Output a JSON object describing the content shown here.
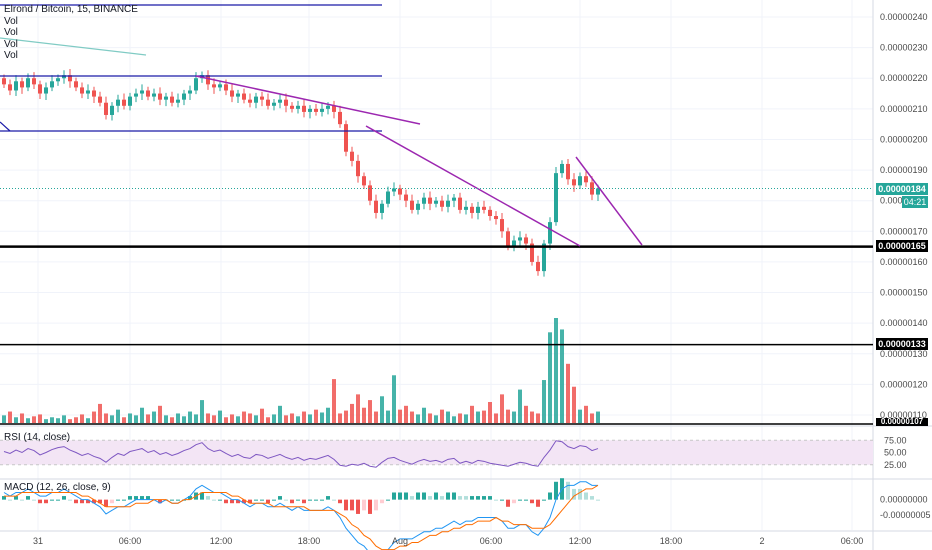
{
  "colors": {
    "up": "#26a69a",
    "down": "#ef5350",
    "trendline": "#9c27b0",
    "channel": "#1a1aa8",
    "level": "#000000",
    "rsi_line": "#7e57c2",
    "rsi_band": "#f3e5f5",
    "macd_line": "#2196f3",
    "signal_line": "#ff6d00",
    "grid": "#f0f3fa",
    "axis_text": "#4a4a4a",
    "last_price": "#26a69a"
  },
  "legend": {
    "symbol": "Elrond / Bitcoin, 15, BINANCE",
    "vol_lines": [
      "Vol",
      "Vol",
      "Vol",
      "Vol"
    ]
  },
  "panes": {
    "rsi_title": "RSI (14, close)",
    "macd_title": "MACD (12, 26, close, 9)"
  },
  "tags": {
    "last_price": "0.00000184",
    "countdown": "04:21",
    "level_165": "0.00000165",
    "level_133": "0.00000133",
    "partial_107": "0.00000107"
  },
  "chart_data": {
    "type": "candlestick",
    "title": "Elrond / Bitcoin, 15, BINANCE",
    "price_axis": {
      "ticks": [
        "0.00000240",
        "0.00000230",
        "0.00000220",
        "0.00000210",
        "0.00000200",
        "0.00000190",
        "0.00000180",
        "0.00000170",
        "0.00000160",
        "0.00000150",
        "0.00000140",
        "0.00000130",
        "0.00000120",
        "0.00000110"
      ],
      "range": [
        1.05e-06,
        2.44e-06
      ]
    },
    "time_axis": {
      "ticks": [
        "31",
        "06:00",
        "12:00",
        "18:00",
        "Aug",
        "06:00",
        "12:00",
        "18:00",
        "2",
        "06:00"
      ]
    },
    "horizontal_levels": [
      1.65e-06,
      1.33e-06,
      2.03e-06,
      2.21e-06,
      2.45e-06
    ],
    "last_price": 1.84e-06,
    "candles": {
      "closes": [
        2.18e-06,
        2.16e-06,
        2.19e-06,
        2.17e-06,
        2.2e-06,
        2.18e-06,
        2.15e-06,
        2.17e-06,
        2.19e-06,
        2.2e-06,
        2.21e-06,
        2.19e-06,
        2.17e-06,
        2.15e-06,
        2.16e-06,
        2.14e-06,
        2.12e-06,
        2.08e-06,
        2.11e-06,
        2.13e-06,
        2.11e-06,
        2.14e-06,
        2.15e-06,
        2.16e-06,
        2.14e-06,
        2.15e-06,
        2.13e-06,
        2.14e-06,
        2.12e-06,
        2.13e-06,
        2.15e-06,
        2.16e-06,
        2.2e-06,
        2.21e-06,
        2.18e-06,
        2.17e-06,
        2.18e-06,
        2.16e-06,
        2.14e-06,
        2.15e-06,
        2.13e-06,
        2.12e-06,
        2.14e-06,
        2.13e-06,
        2.11e-06,
        2.12e-06,
        2.13e-06,
        2.11e-06,
        2.1e-06,
        2.11e-06,
        2.09e-06,
        2.1e-06,
        2.09e-06,
        2.1e-06,
        2.11e-06,
        2.09e-06,
        2.05e-06,
        1.96e-06,
        1.93e-06,
        1.88e-06,
        1.85e-06,
        1.8e-06,
        1.76e-06,
        1.79e-06,
        1.83e-06,
        1.84e-06,
        1.82e-06,
        1.8e-06,
        1.77e-06,
        1.79e-06,
        1.81e-06,
        1.79e-06,
        1.8e-06,
        1.78e-06,
        1.8e-06,
        1.81e-06,
        1.77e-06,
        1.78e-06,
        1.76e-06,
        1.78e-06,
        1.77e-06,
        1.75e-06,
        1.74e-06,
        1.7e-06,
        1.65e-06,
        1.67e-06,
        1.68e-06,
        1.66e-06,
        1.6e-06,
        1.57e-06,
        1.66e-06,
        1.73e-06,
        1.89e-06,
        1.92e-06,
        1.87e-06,
        1.85e-06,
        1.88e-06,
        1.86e-06,
        1.82e-06,
        1.84e-06
      ]
    },
    "volume": {
      "values": [
        8,
        12,
        6,
        10,
        5,
        7,
        9,
        4,
        6,
        5,
        8,
        4,
        6,
        9,
        5,
        12,
        20,
        10,
        8,
        14,
        6,
        10,
        8,
        16,
        9,
        12,
        18,
        8,
        6,
        10,
        7,
        12,
        9,
        24,
        10,
        8,
        13,
        6,
        9,
        7,
        12,
        10,
        8,
        15,
        6,
        9,
        18,
        8,
        10,
        7,
        12,
        9,
        14,
        11,
        16,
        46,
        10,
        13,
        20,
        30,
        16,
        24,
        12,
        28,
        13,
        50,
        14,
        18,
        12,
        9,
        16,
        10,
        8,
        14,
        12,
        7,
        10,
        9,
        18,
        12,
        13,
        22,
        10,
        30,
        14,
        12,
        35,
        18,
        12,
        10,
        45,
        95,
        110,
        98,
        62,
        38,
        14,
        18,
        10,
        12
      ]
    },
    "rsi": {
      "ylim": [
        0,
        100
      ],
      "ticks": [
        "75.00",
        "50.00",
        "25.00"
      ],
      "values": [
        52,
        48,
        55,
        50,
        58,
        54,
        45,
        50,
        56,
        60,
        62,
        55,
        50,
        44,
        48,
        42,
        38,
        30,
        40,
        48,
        44,
        52,
        55,
        58,
        50,
        54,
        46,
        50,
        44,
        48,
        54,
        58,
        66,
        70,
        58,
        52,
        55,
        48,
        42,
        46,
        40,
        38,
        46,
        44,
        38,
        42,
        46,
        40,
        36,
        40,
        34,
        38,
        36,
        40,
        44,
        36,
        24,
        22,
        26,
        24,
        28,
        22,
        20,
        30,
        38,
        40,
        34,
        30,
        26,
        32,
        36,
        32,
        34,
        30,
        36,
        38,
        28,
        32,
        28,
        34,
        32,
        28,
        26,
        24,
        22,
        26,
        30,
        28,
        24,
        22,
        40,
        55,
        74,
        72,
        62,
        58,
        64,
        62,
        54,
        58
      ]
    },
    "macd": {
      "ticks": [
        "0.00000000",
        "-0.00000005"
      ],
      "range": [
        -8.5e-09,
        5.5e-09
      ],
      "macd": [
        2e-09,
        1e-09,
        2e-09,
        2e-09,
        3e-09,
        2e-09,
        1e-09,
        1e-09,
        2e-09,
        2e-09,
        3e-09,
        2e-09,
        1e-09,
        0,
        0,
        -1e-09,
        -2e-09,
        -4e-09,
        -3e-09,
        -2e-09,
        -2e-09,
        -1e-09,
        0,
        0,
        0,
        0,
        -1e-09,
        0,
        -1e-09,
        -1e-09,
        0,
        1e-09,
        3e-09,
        4e-09,
        3e-09,
        2e-09,
        2e-09,
        1e-09,
        0,
        0,
        -1e-09,
        -2e-09,
        -1e-09,
        -1e-09,
        -2e-09,
        -2e-09,
        -1e-09,
        -2e-09,
        -3e-09,
        -2e-09,
        -3e-09,
        -3e-09,
        -3e-09,
        -3e-09,
        -2e-09,
        -3e-09,
        -5e-09,
        -8e-09,
        -1e-08,
        -1.2e-08,
        -1.3e-08,
        -1.5e-08,
        -1.6e-08,
        -1.5e-08,
        -1.4e-08,
        -1.2e-08,
        -1.1e-08,
        -1.1e-08,
        -1.1e-08,
        -1e-08,
        -9e-09,
        -9e-09,
        -8e-09,
        -8e-09,
        -7e-09,
        -6e-09,
        -7e-09,
        -6e-09,
        -6e-09,
        -5e-09,
        -5e-09,
        -5e-09,
        -5e-09,
        -6e-09,
        -8e-09,
        -8e-09,
        -7e-09,
        -7e-09,
        -9e-09,
        -1e-08,
        -8e-09,
        -5e-09,
        0,
        3e-09,
        4e-09,
        4e-09,
        5e-09,
        5e-09,
        4e-09,
        4e-09
      ],
      "signal": [
        1e-09,
        1e-09,
        1e-09,
        2e-09,
        2e-09,
        2e-09,
        2e-09,
        2e-09,
        2e-09,
        2e-09,
        2e-09,
        2e-09,
        2e-09,
        1e-09,
        1e-09,
        0,
        -1e-09,
        -2e-09,
        -2e-09,
        -2e-09,
        -2e-09,
        -2e-09,
        -1e-09,
        -1e-09,
        -1e-09,
        0,
        0,
        0,
        -1e-09,
        -1e-09,
        0,
        0,
        1e-09,
        2e-09,
        2e-09,
        2e-09,
        2e-09,
        2e-09,
        1e-09,
        1e-09,
        0,
        -1e-09,
        -1e-09,
        -1e-09,
        -1e-09,
        -2e-09,
        -2e-09,
        -2e-09,
        -2e-09,
        -2e-09,
        -2e-09,
        -3e-09,
        -3e-09,
        -3e-09,
        -3e-09,
        -3e-09,
        -4e-09,
        -5e-09,
        -7e-09,
        -8e-09,
        -1e-08,
        -1.1e-08,
        -1.3e-08,
        -1.4e-08,
        -1.4e-08,
        -1.4e-08,
        -1.3e-08,
        -1.3e-08,
        -1.2e-08,
        -1.2e-08,
        -1.1e-08,
        -1e-08,
        -1e-08,
        -9e-09,
        -9e-09,
        -8e-09,
        -8e-09,
        -7e-09,
        -7e-09,
        -6e-09,
        -6e-09,
        -6e-09,
        -5e-09,
        -6e-09,
        -6e-09,
        -7e-09,
        -7e-09,
        -7e-09,
        -8e-09,
        -8e-09,
        -8e-09,
        -7e-09,
        -5e-09,
        -3e-09,
        -1e-09,
        1e-09,
        2e-09,
        3e-09,
        3e-09,
        4e-09
      ]
    }
  }
}
